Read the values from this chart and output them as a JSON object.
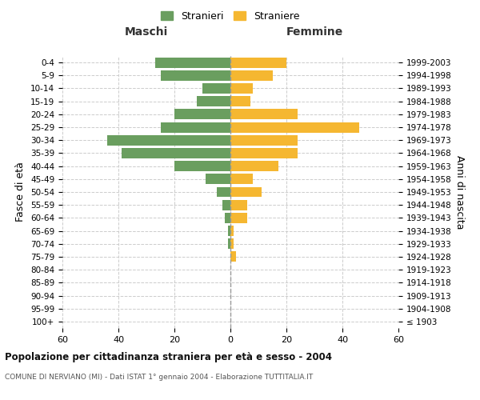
{
  "age_groups": [
    "100+",
    "95-99",
    "90-94",
    "85-89",
    "80-84",
    "75-79",
    "70-74",
    "65-69",
    "60-64",
    "55-59",
    "50-54",
    "45-49",
    "40-44",
    "35-39",
    "30-34",
    "25-29",
    "20-24",
    "15-19",
    "10-14",
    "5-9",
    "0-4"
  ],
  "birth_years": [
    "≤ 1903",
    "1904-1908",
    "1909-1913",
    "1914-1918",
    "1919-1923",
    "1924-1928",
    "1929-1933",
    "1934-1938",
    "1939-1943",
    "1944-1948",
    "1949-1953",
    "1954-1958",
    "1959-1963",
    "1964-1968",
    "1969-1973",
    "1974-1978",
    "1979-1983",
    "1984-1988",
    "1989-1993",
    "1994-1998",
    "1999-2003"
  ],
  "males": [
    0,
    0,
    0,
    0,
    0,
    0,
    1,
    1,
    2,
    3,
    5,
    9,
    20,
    39,
    44,
    25,
    20,
    12,
    10,
    25,
    27
  ],
  "females": [
    0,
    0,
    0,
    0,
    0,
    2,
    1,
    1,
    6,
    6,
    11,
    8,
    17,
    24,
    24,
    46,
    24,
    7,
    8,
    15,
    20
  ],
  "male_color": "#6a9e5f",
  "female_color": "#f5b731",
  "background_color": "#ffffff",
  "grid_color": "#cccccc",
  "title": "Popolazione per cittadinanza straniera per età e sesso - 2004",
  "subtitle": "COMUNE DI NERVIANO (MI) - Dati ISTAT 1° gennaio 2004 - Elaborazione TUTTITALIA.IT",
  "left_label": "Maschi",
  "right_label": "Femmine",
  "left_axis_label": "Fasce di età",
  "right_axis_label": "Anni di nascita",
  "legend_male": "Stranieri",
  "legend_female": "Straniere",
  "xlim": 60,
  "bar_height": 0.8
}
